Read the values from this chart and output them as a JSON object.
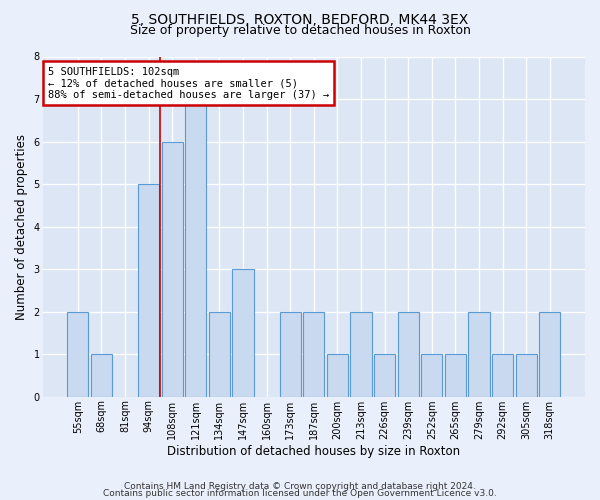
{
  "title_line1": "5, SOUTHFIELDS, ROXTON, BEDFORD, MK44 3EX",
  "title_line2": "Size of property relative to detached houses in Roxton",
  "xlabel": "Distribution of detached houses by size in Roxton",
  "ylabel": "Number of detached properties",
  "categories": [
    "55sqm",
    "68sqm",
    "81sqm",
    "94sqm",
    "108sqm",
    "121sqm",
    "134sqm",
    "147sqm",
    "160sqm",
    "173sqm",
    "187sqm",
    "200sqm",
    "213sqm",
    "226sqm",
    "239sqm",
    "252sqm",
    "265sqm",
    "279sqm",
    "292sqm",
    "305sqm",
    "318sqm"
  ],
  "values": [
    2,
    1,
    0,
    5,
    6,
    7,
    2,
    3,
    0,
    2,
    2,
    1,
    2,
    1,
    2,
    1,
    1,
    2,
    1,
    1,
    2
  ],
  "bar_color": "#c9d9f0",
  "bar_edge_color": "#5b9bd5",
  "red_line_x": 3.5,
  "annotation_box_text": "5 SOUTHFIELDS: 102sqm\n← 12% of detached houses are smaller (5)\n88% of semi-detached houses are larger (37) →",
  "annotation_box_color": "#ffffff",
  "annotation_box_edge_color": "#cc0000",
  "ylim": [
    0,
    8
  ],
  "yticks": [
    0,
    1,
    2,
    3,
    4,
    5,
    6,
    7,
    8
  ],
  "background_color": "#eaf0fb",
  "plot_background_color": "#dce6f5",
  "grid_color": "#ffffff",
  "footer_line1": "Contains HM Land Registry data © Crown copyright and database right 2024.",
  "footer_line2": "Contains public sector information licensed under the Open Government Licence v3.0.",
  "title_fontsize": 10,
  "subtitle_fontsize": 9,
  "axis_label_fontsize": 8.5,
  "tick_fontsize": 7,
  "annotation_fontsize": 7.5,
  "footer_fontsize": 6.5
}
